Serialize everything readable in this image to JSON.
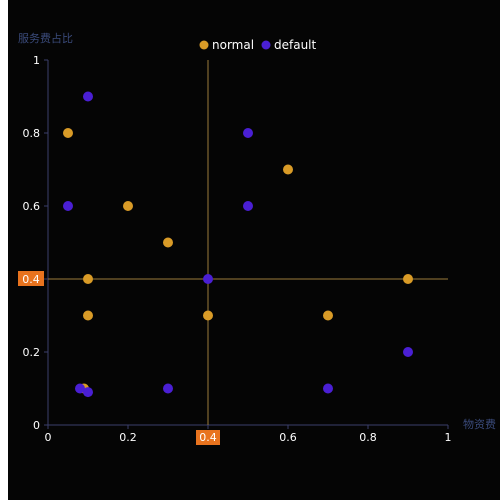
{
  "chart_data": {
    "type": "scatter",
    "xlabel": "物资费",
    "ylabel": "服务费占比",
    "xlim": [
      0,
      1
    ],
    "ylim": [
      0,
      1
    ],
    "x_ticks": [
      "0",
      "0.2",
      "0.4",
      "0.6",
      "0.8",
      "1"
    ],
    "y_ticks": [
      "0",
      "0.2",
      "0.4",
      "0.6",
      "0.8",
      "1"
    ],
    "grid": false,
    "legend_position": "top-center",
    "crosshair": {
      "x": 0.4,
      "y": 0.4,
      "x_label": "0.4",
      "y_label": "0.4"
    },
    "colors": {
      "background": "#050505",
      "axis": "#3a3f6a",
      "axis_label": "#3a4a7a",
      "tick_label": "#ffffff",
      "crosshair": "#9a7a3a",
      "crosshair_label_bg": "#e8731e"
    },
    "series": [
      {
        "name": "normal",
        "color": "#d99b27",
        "points": [
          [
            0.05,
            0.8
          ],
          [
            0.2,
            0.6
          ],
          [
            0.3,
            0.5
          ],
          [
            0.6,
            0.7
          ],
          [
            0.1,
            0.4
          ],
          [
            0.1,
            0.3
          ],
          [
            0.4,
            0.3
          ],
          [
            0.7,
            0.3
          ],
          [
            0.9,
            0.4
          ],
          [
            0.09,
            0.1
          ]
        ]
      },
      {
        "name": "default",
        "color": "#4a1fd4",
        "points": [
          [
            0.1,
            0.9
          ],
          [
            0.5,
            0.8
          ],
          [
            0.05,
            0.6
          ],
          [
            0.5,
            0.6
          ],
          [
            0.4,
            0.4
          ],
          [
            0.9,
            0.2
          ],
          [
            0.08,
            0.1
          ],
          [
            0.1,
            0.09
          ],
          [
            0.3,
            0.1
          ],
          [
            0.7,
            0.1
          ]
        ]
      }
    ]
  }
}
